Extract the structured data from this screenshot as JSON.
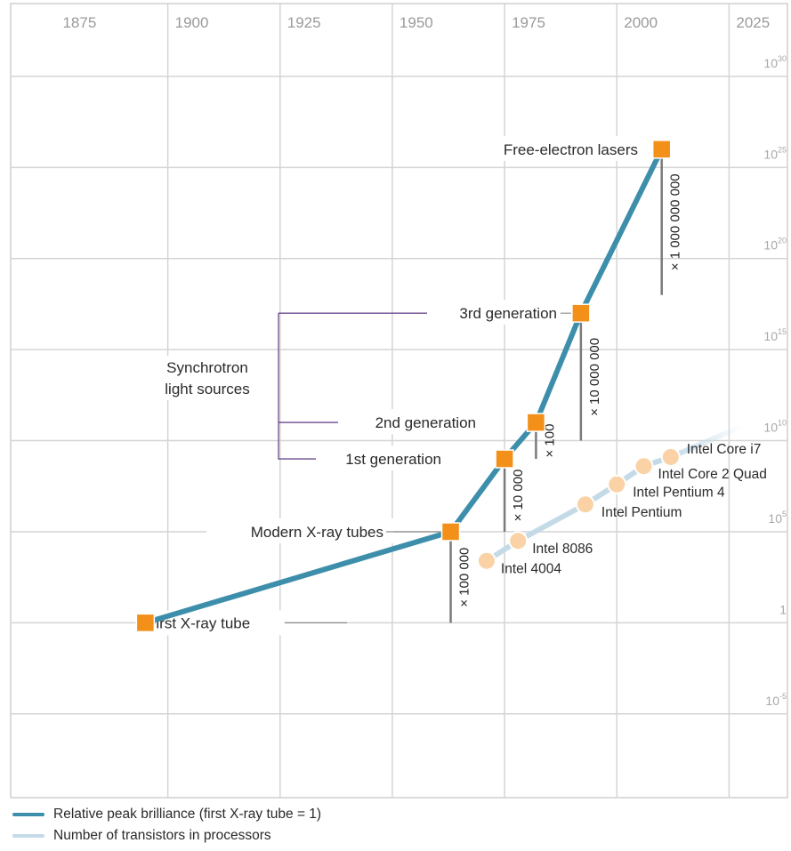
{
  "chart_data": {
    "type": "line",
    "x_ticks": [
      "1875",
      "1900",
      "1925",
      "1950",
      "1975",
      "2000",
      "2025"
    ],
    "y_ticks": [
      {
        "base": "10",
        "exp": "30",
        "value": 30
      },
      {
        "base": "10",
        "exp": "25",
        "value": 25
      },
      {
        "base": "10",
        "exp": "20",
        "value": 20
      },
      {
        "base": "10",
        "exp": "15",
        "value": 15
      },
      {
        "base": "10",
        "exp": "10",
        "value": 10
      },
      {
        "base": "10",
        "exp": "5",
        "value": 5
      },
      {
        "base": "1",
        "exp": "",
        "value": 0
      },
      {
        "base": "10",
        "exp": "-5",
        "value": -5
      }
    ],
    "y_scale": "log10",
    "xlim": [
      1865,
      2038
    ],
    "ylim": [
      -9.6,
      34
    ],
    "grid": true,
    "series": [
      {
        "name": "Relative peak brilliance (first X-ray tube = 1)",
        "color": "#3d8eab",
        "marker_color": "#f39019",
        "points": [
          {
            "x": 1895,
            "y": 0,
            "label": "First X-ray tube"
          },
          {
            "x": 1963,
            "y": 5,
            "label": "Modern X-ray tubes"
          },
          {
            "x": 1975,
            "y": 9,
            "label": "1st generation"
          },
          {
            "x": 1982,
            "y": 11,
            "label": "2nd generation"
          },
          {
            "x": 1992,
            "y": 17,
            "label": "3rd generation"
          },
          {
            "x": 2010,
            "y": 26,
            "label": "Free-electron lasers"
          }
        ]
      },
      {
        "name": "Number of transistors in processors",
        "color": "#c4dbe7",
        "marker_color": "#fad2a5",
        "points": [
          {
            "x": 1971,
            "y": 3.4,
            "label": "Intel 4004"
          },
          {
            "x": 1978,
            "y": 4.5,
            "label": "Intel 8086"
          },
          {
            "x": 1993,
            "y": 6.5,
            "label": "Intel Pentium"
          },
          {
            "x": 2000,
            "y": 7.6,
            "label": "Intel Pentium 4"
          },
          {
            "x": 2006,
            "y": 8.6,
            "label": "Intel Core 2 Quad"
          },
          {
            "x": 2012,
            "y": 9.1,
            "label": "Intel Core i7"
          }
        ],
        "trend_end": {
          "x": 2028,
          "y": 10.8
        }
      }
    ],
    "group_label": [
      "Synchrotron",
      "light sources"
    ],
    "factor_bars": [
      {
        "text": "× 100 000",
        "x": 1963,
        "y_from": 0,
        "y_to": 5
      },
      {
        "text": "× 10 000",
        "x": 1975,
        "y_from": 5,
        "y_to": 9
      },
      {
        "text": "× 100",
        "x": 1982,
        "y_from": 9,
        "y_to": 11
      },
      {
        "text": "× 10 000 000",
        "x": 1992,
        "y_from": 10,
        "y_to": 17
      },
      {
        "text": "× 1 000 000 000",
        "x": 2010,
        "y_from": 18,
        "y_to": 26
      }
    ]
  },
  "legend": {
    "items": [
      {
        "label": "Relative peak brilliance (first X-ray tube = 1)",
        "color": "#3d8eab"
      },
      {
        "label": "Number of transistors in processors",
        "color": "#c4dbe7"
      }
    ]
  }
}
